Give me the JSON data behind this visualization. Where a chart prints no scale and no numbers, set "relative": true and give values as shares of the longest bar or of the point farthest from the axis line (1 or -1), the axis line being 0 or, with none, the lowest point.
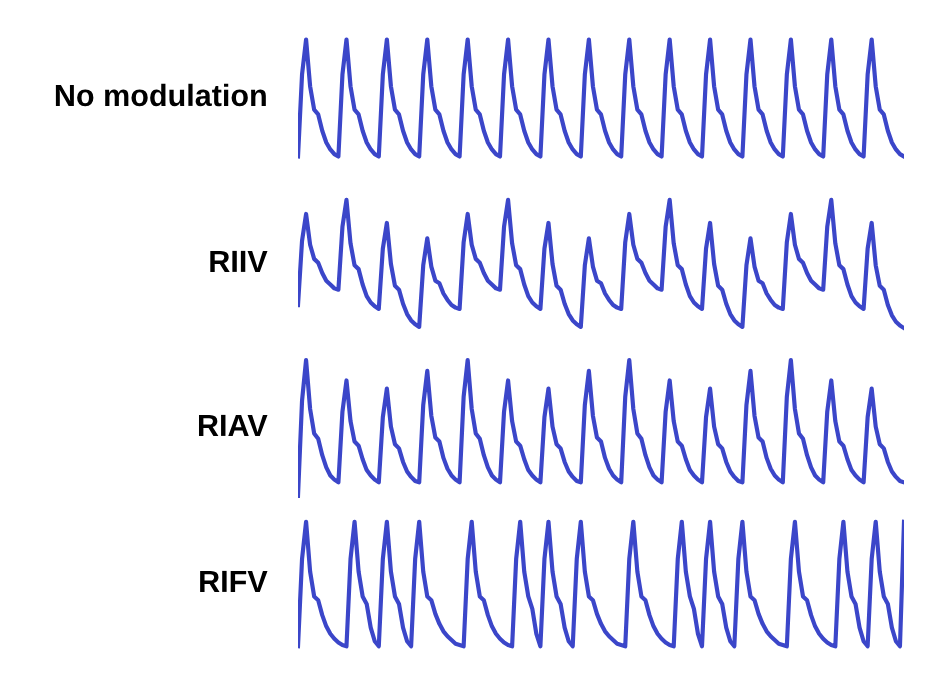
{
  "chart_data": [
    {
      "type": "line",
      "relative": true,
      "categories": [
        null,
        null,
        null,
        null,
        null,
        null,
        null,
        null,
        null,
        null,
        null,
        null,
        null,
        null,
        null,
        null,
        null,
        null,
        null,
        null,
        null,
        null,
        null,
        null,
        null,
        null,
        null,
        null,
        null,
        null,
        null,
        null,
        null,
        null,
        null,
        null,
        null,
        null,
        null,
        null,
        null,
        null,
        null,
        null,
        null,
        null,
        null,
        null,
        null,
        null,
        null,
        null,
        null,
        null,
        null,
        null,
        null,
        null,
        null,
        null,
        null,
        null,
        null,
        null,
        null,
        null,
        null,
        null,
        null,
        null,
        null,
        null,
        null,
        null,
        null,
        null,
        null,
        null,
        null,
        null,
        null,
        null,
        null,
        null,
        null,
        null,
        null,
        null,
        null,
        null,
        null,
        null,
        null,
        null,
        null,
        null,
        null,
        null,
        null,
        null,
        null,
        null,
        null,
        null,
        null,
        null,
        null,
        null,
        null,
        null,
        null,
        null,
        null,
        null,
        null,
        null,
        null,
        null,
        null,
        null,
        null,
        null,
        null,
        null,
        null,
        null,
        null,
        null,
        null,
        null,
        null,
        null,
        null,
        null,
        null,
        null,
        null,
        null,
        null,
        null,
        null,
        null,
        null,
        null,
        null,
        null,
        null,
        null,
        null,
        null,
        null
      ],
      "series": [
        {
          "name": "No modulation",
          "color": "#3b46c9",
          "values": [
            0,
            0.7,
            1,
            0.6,
            0.4,
            0.36,
            0.22,
            0.12,
            0.06,
            0.02,
            0,
            0.7,
            1,
            0.6,
            0.4,
            0.36,
            0.22,
            0.12,
            0.06,
            0.02,
            0,
            0.7,
            1,
            0.6,
            0.4,
            0.36,
            0.22,
            0.12,
            0.06,
            0.02,
            0,
            0.7,
            1,
            0.6,
            0.4,
            0.36,
            0.22,
            0.12,
            0.06,
            0.02,
            0,
            0.7,
            1,
            0.6,
            0.4,
            0.36,
            0.22,
            0.12,
            0.06,
            0.02,
            0,
            0.7,
            1,
            0.6,
            0.4,
            0.36,
            0.22,
            0.12,
            0.06,
            0.02,
            0,
            0.7,
            1,
            0.6,
            0.4,
            0.36,
            0.22,
            0.12,
            0.06,
            0.02,
            0,
            0.7,
            1,
            0.6,
            0.4,
            0.36,
            0.22,
            0.12,
            0.06,
            0.02,
            0,
            0.7,
            1,
            0.6,
            0.4,
            0.36,
            0.22,
            0.12,
            0.06,
            0.02,
            0,
            0.7,
            1,
            0.6,
            0.4,
            0.36,
            0.22,
            0.12,
            0.06,
            0.02,
            0,
            0.7,
            1,
            0.6,
            0.4,
            0.36,
            0.22,
            0.12,
            0.06,
            0.02,
            0,
            0.7,
            1,
            0.6,
            0.4,
            0.36,
            0.22,
            0.12,
            0.06,
            0.02,
            0,
            0.7,
            1,
            0.6,
            0.4,
            0.36,
            0.22,
            0.12,
            0.06,
            0.02,
            0,
            0.7,
            1,
            0.6,
            0.4,
            0.36,
            0.22,
            0.12,
            0.06,
            0.02,
            0,
            0.7,
            1,
            0.6,
            0.4,
            0.36,
            0.22,
            0.12,
            0.06,
            0.02,
            0
          ]
        }
      ]
    },
    {
      "type": "line",
      "relative": true,
      "categories": [
        null,
        null,
        null,
        null,
        null,
        null,
        null,
        null,
        null,
        null,
        null,
        null,
        null,
        null,
        null,
        null,
        null,
        null,
        null,
        null,
        null,
        null,
        null,
        null,
        null,
        null,
        null,
        null,
        null,
        null,
        null,
        null,
        null,
        null,
        null,
        null,
        null,
        null,
        null,
        null,
        null,
        null,
        null,
        null,
        null,
        null,
        null,
        null,
        null,
        null,
        null,
        null,
        null,
        null,
        null,
        null,
        null,
        null,
        null,
        null,
        null,
        null,
        null,
        null,
        null,
        null,
        null,
        null,
        null,
        null,
        null,
        null,
        null,
        null,
        null,
        null,
        null,
        null,
        null,
        null,
        null,
        null,
        null,
        null,
        null,
        null,
        null,
        null,
        null,
        null,
        null,
        null,
        null,
        null,
        null,
        null,
        null,
        null,
        null,
        null,
        null,
        null,
        null,
        null,
        null,
        null,
        null,
        null,
        null,
        null,
        null,
        null,
        null,
        null,
        null,
        null,
        null,
        null,
        null,
        null,
        null,
        null,
        null,
        null,
        null,
        null,
        null,
        null,
        null,
        null,
        null,
        null,
        null,
        null,
        null,
        null,
        null,
        null,
        null,
        null,
        null,
        null,
        null,
        null,
        null,
        null,
        null,
        null,
        null,
        null,
        null
      ],
      "series": [
        {
          "name": "RIIV",
          "color": "#3b46c9",
          "values": [
            0.18,
            0.68,
            0.89,
            0.65,
            0.54,
            0.51,
            0.43,
            0.37,
            0.34,
            0.31,
            0.3,
            0.79,
            1,
            0.66,
            0.49,
            0.46,
            0.34,
            0.25,
            0.2,
            0.17,
            0.15,
            0.62,
            0.82,
            0.5,
            0.33,
            0.3,
            0.19,
            0.11,
            0.06,
            0.03,
            0.01,
            0.49,
            0.7,
            0.48,
            0.37,
            0.35,
            0.27,
            0.22,
            0.18,
            0.16,
            0.15,
            0.67,
            0.89,
            0.65,
            0.54,
            0.51,
            0.43,
            0.37,
            0.34,
            0.31,
            0.3,
            0.79,
            1,
            0.66,
            0.49,
            0.46,
            0.34,
            0.25,
            0.2,
            0.17,
            0.15,
            0.62,
            0.82,
            0.5,
            0.33,
            0.3,
            0.19,
            0.11,
            0.06,
            0.03,
            0.01,
            0.49,
            0.7,
            0.48,
            0.37,
            0.35,
            0.27,
            0.22,
            0.18,
            0.16,
            0.15,
            0.67,
            0.89,
            0.65,
            0.54,
            0.51,
            0.43,
            0.37,
            0.34,
            0.31,
            0.3,
            0.79,
            1,
            0.66,
            0.49,
            0.46,
            0.34,
            0.25,
            0.2,
            0.17,
            0.15,
            0.62,
            0.82,
            0.5,
            0.33,
            0.3,
            0.19,
            0.11,
            0.06,
            0.03,
            0.01,
            0.49,
            0.7,
            0.48,
            0.37,
            0.35,
            0.27,
            0.22,
            0.18,
            0.16,
            0.15,
            0.67,
            0.89,
            0.65,
            0.54,
            0.51,
            0.43,
            0.37,
            0.34,
            0.31,
            0.3,
            0.79,
            1,
            0.66,
            0.49,
            0.46,
            0.34,
            0.25,
            0.2,
            0.17,
            0.15,
            0.62,
            0.82,
            0.49,
            0.33,
            0.3,
            0.18,
            0.1,
            0.05,
            0.02,
            0
          ]
        }
      ]
    },
    {
      "type": "line",
      "relative": true,
      "categories": [
        null,
        null,
        null,
        null,
        null,
        null,
        null,
        null,
        null,
        null,
        null,
        null,
        null,
        null,
        null,
        null,
        null,
        null,
        null,
        null,
        null,
        null,
        null,
        null,
        null,
        null,
        null,
        null,
        null,
        null,
        null,
        null,
        null,
        null,
        null,
        null,
        null,
        null,
        null,
        null,
        null,
        null,
        null,
        null,
        null,
        null,
        null,
        null,
        null,
        null,
        null,
        null,
        null,
        null,
        null,
        null,
        null,
        null,
        null,
        null,
        null,
        null,
        null,
        null,
        null,
        null,
        null,
        null,
        null,
        null,
        null,
        null,
        null,
        null,
        null,
        null,
        null,
        null,
        null,
        null,
        null,
        null,
        null,
        null,
        null,
        null,
        null,
        null,
        null,
        null,
        null,
        null,
        null,
        null,
        null,
        null,
        null,
        null,
        null,
        null,
        null,
        null,
        null,
        null,
        null,
        null,
        null,
        null,
        null,
        null,
        null,
        null,
        null,
        null,
        null,
        null,
        null,
        null,
        null,
        null,
        null,
        null,
        null,
        null,
        null,
        null,
        null,
        null,
        null,
        null,
        null,
        null,
        null,
        null,
        null,
        null,
        null,
        null,
        null,
        null,
        null,
        null,
        null,
        null,
        null,
        null,
        null,
        null,
        null,
        null,
        null
      ],
      "series": [
        {
          "name": "RIAV",
          "color": "#3b46c9",
          "values": [
            0,
            0.7,
            1,
            0.64,
            0.46,
            0.42,
            0.3,
            0.21,
            0.15,
            0.12,
            0.1,
            0.62,
            0.85,
            0.55,
            0.4,
            0.37,
            0.27,
            0.19,
            0.15,
            0.12,
            0.1,
            0.58,
            0.79,
            0.51,
            0.38,
            0.35,
            0.25,
            0.18,
            0.14,
            0.11,
            0.1,
            0.67,
            0.92,
            0.59,
            0.43,
            0.4,
            0.28,
            0.2,
            0.15,
            0.12,
            0.1,
            0.73,
            1,
            0.64,
            0.46,
            0.42,
            0.3,
            0.21,
            0.15,
            0.12,
            0.1,
            0.62,
            0.85,
            0.55,
            0.4,
            0.37,
            0.27,
            0.19,
            0.15,
            0.12,
            0.1,
            0.58,
            0.79,
            0.51,
            0.38,
            0.35,
            0.25,
            0.18,
            0.14,
            0.11,
            0.1,
            0.67,
            0.92,
            0.59,
            0.43,
            0.4,
            0.28,
            0.2,
            0.15,
            0.12,
            0.1,
            0.73,
            1,
            0.64,
            0.46,
            0.42,
            0.3,
            0.21,
            0.15,
            0.12,
            0.1,
            0.62,
            0.85,
            0.55,
            0.4,
            0.37,
            0.27,
            0.19,
            0.15,
            0.12,
            0.1,
            0.58,
            0.79,
            0.51,
            0.38,
            0.35,
            0.25,
            0.18,
            0.14,
            0.11,
            0.1,
            0.67,
            0.92,
            0.59,
            0.43,
            0.4,
            0.28,
            0.2,
            0.15,
            0.12,
            0.1,
            0.73,
            1,
            0.64,
            0.46,
            0.42,
            0.3,
            0.21,
            0.15,
            0.12,
            0.1,
            0.62,
            0.85,
            0.55,
            0.4,
            0.37,
            0.27,
            0.19,
            0.15,
            0.12,
            0.1,
            0.58,
            0.79,
            0.51,
            0.38,
            0.35,
            0.25,
            0.18,
            0.14,
            0.11,
            0.1
          ]
        }
      ]
    },
    {
      "type": "line",
      "relative": true,
      "categories": [
        null,
        null,
        null,
        null,
        null,
        null,
        null,
        null,
        null,
        null,
        null,
        null,
        null,
        null,
        null,
        null,
        null,
        null,
        null,
        null,
        null,
        null,
        null,
        null,
        null,
        null,
        null,
        null,
        null,
        null,
        null,
        null,
        null,
        null,
        null,
        null,
        null,
        null,
        null,
        null,
        null,
        null,
        null,
        null,
        null,
        null,
        null,
        null,
        null,
        null,
        null,
        null,
        null,
        null,
        null,
        null,
        null,
        null,
        null,
        null,
        null,
        null,
        null,
        null,
        null,
        null,
        null,
        null,
        null,
        null,
        null,
        null,
        null,
        null,
        null,
        null,
        null,
        null,
        null,
        null,
        null,
        null,
        null,
        null,
        null,
        null,
        null,
        null,
        null,
        null,
        null,
        null,
        null,
        null,
        null,
        null,
        null,
        null,
        null,
        null,
        null,
        null,
        null,
        null,
        null,
        null,
        null,
        null,
        null,
        null,
        null,
        null,
        null,
        null,
        null,
        null,
        null,
        null,
        null,
        null,
        null,
        null,
        null,
        null,
        null,
        null,
        null,
        null,
        null,
        null,
        null,
        null,
        null,
        null,
        null,
        null,
        null,
        null,
        null,
        null,
        null,
        null,
        null,
        null,
        null,
        null,
        null,
        null,
        null,
        null,
        null
      ],
      "series": [
        {
          "name": "RIFV",
          "color": "#3b46c9",
          "values": [
            0,
            0.7,
            1,
            0.6,
            0.4,
            0.37,
            0.25,
            0.16,
            0.1,
            0.06,
            0.03,
            0.01,
            0,
            0.7,
            1,
            0.6,
            0.4,
            0.34,
            0.15,
            0.04,
            0,
            0.7,
            1,
            0.6,
            0.4,
            0.34,
            0.15,
            0.04,
            0,
            0.7,
            1,
            0.6,
            0.4,
            0.37,
            0.26,
            0.18,
            0.12,
            0.08,
            0.05,
            0.02,
            0.01,
            0,
            0.7,
            1,
            0.6,
            0.4,
            0.37,
            0.25,
            0.16,
            0.1,
            0.06,
            0.03,
            0.01,
            0,
            0.7,
            1,
            0.6,
            0.4,
            0.3,
            0.1,
            0,
            0.7,
            1,
            0.6,
            0.4,
            0.34,
            0.15,
            0.04,
            0,
            0.7,
            1,
            0.6,
            0.4,
            0.37,
            0.26,
            0.18,
            0.12,
            0.08,
            0.05,
            0.02,
            0.01,
            0,
            0.7,
            1,
            0.6,
            0.4,
            0.37,
            0.25,
            0.16,
            0.1,
            0.06,
            0.03,
            0.01,
            0,
            0.7,
            1,
            0.6,
            0.4,
            0.3,
            0.1,
            0,
            0.7,
            1,
            0.6,
            0.4,
            0.34,
            0.15,
            0.04,
            0,
            0.7,
            1,
            0.6,
            0.4,
            0.37,
            0.26,
            0.18,
            0.12,
            0.08,
            0.05,
            0.02,
            0.01,
            0,
            0.7,
            1,
            0.6,
            0.4,
            0.37,
            0.25,
            0.16,
            0.1,
            0.06,
            0.03,
            0.01,
            0,
            0.7,
            1,
            0.6,
            0.4,
            0.34,
            0.15,
            0.04,
            0,
            0.7,
            1,
            0.6,
            0.4,
            0.34,
            0.15,
            0.04,
            0,
            1
          ]
        }
      ]
    }
  ]
}
